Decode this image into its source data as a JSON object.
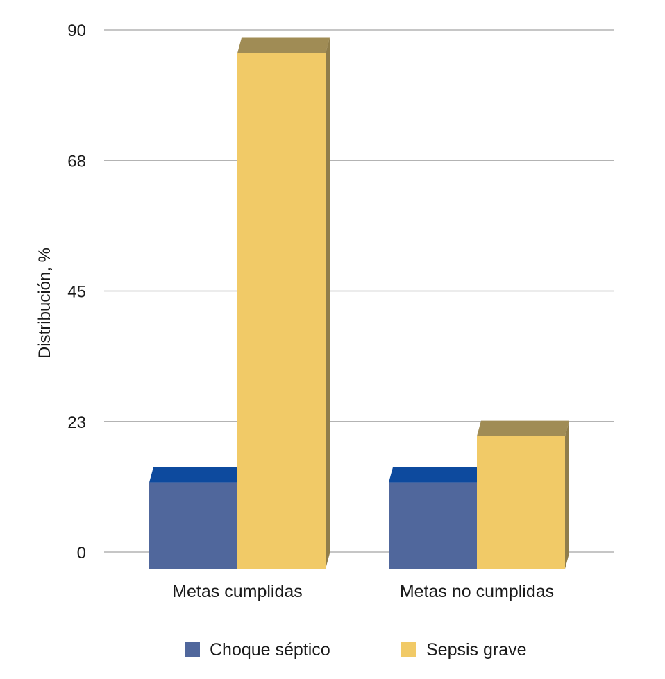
{
  "chart_data": {
    "type": "bar",
    "categories": [
      "Metas cumplidas",
      "Metas no cumplidas"
    ],
    "series": [
      {
        "name": "Choque séptico",
        "values": [
          12,
          12
        ]
      },
      {
        "name": "Sepsis grave",
        "values": [
          86,
          20
        ]
      }
    ],
    "yticks": [
      "0",
      "23",
      "45",
      "68",
      "90"
    ],
    "ylim": [
      0,
      90
    ],
    "ylabel": "Distribución, %",
    "xlabel": "",
    "grid": true,
    "legend_position": "bottom",
    "three_d": true
  },
  "colors": {
    "Choque séptico": {
      "front": "#50679c",
      "top": "#0d4a9e",
      "side": "#2c4a84"
    },
    "Sepsis grave": {
      "front": "#f1ca67",
      "top": "#a08c55",
      "side": "#8f7d4b"
    },
    "grid": "#b3b3b3"
  }
}
